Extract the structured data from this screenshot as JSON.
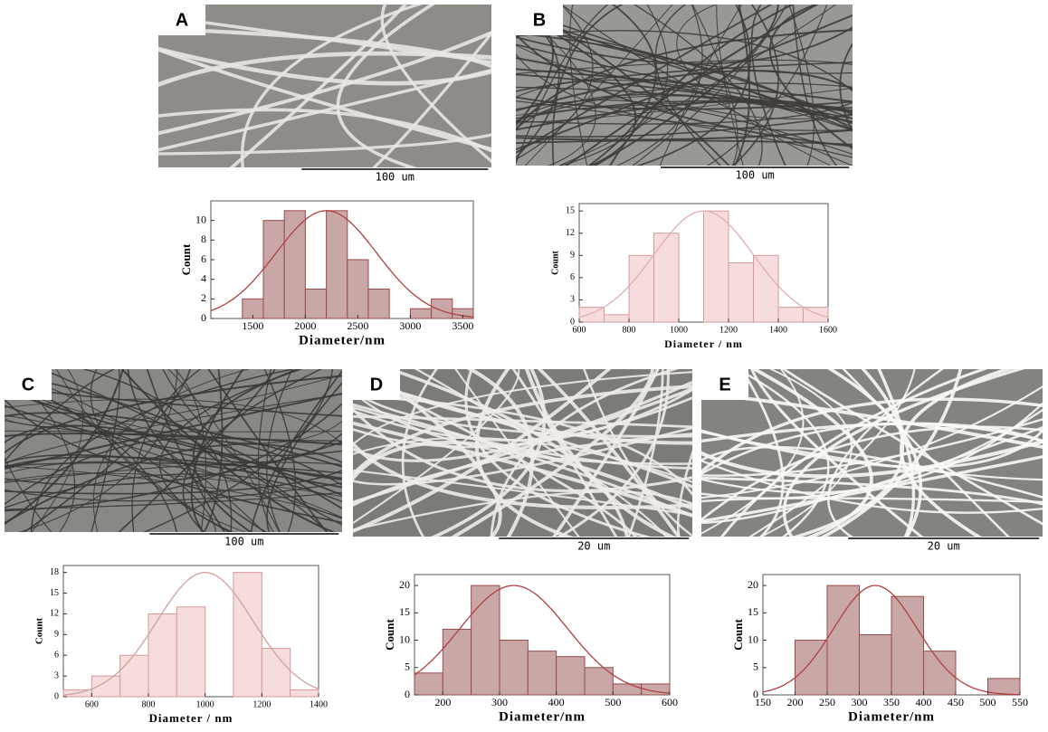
{
  "panels": [
    {
      "label": "A",
      "scale_bar": "100 um"
    },
    {
      "label": "B",
      "scale_bar": "100 um"
    },
    {
      "label": "C",
      "scale_bar": "100 um"
    },
    {
      "label": "D",
      "scale_bar": "20 um"
    },
    {
      "label": "E",
      "scale_bar": "20 um"
    }
  ],
  "chart_data": [
    {
      "type": "histogram",
      "xlabel": "Diameter/nm",
      "ylabel": "Count",
      "color": "#c9a7a7",
      "edge": "#9a4a4a",
      "curve_color": "#b04040",
      "bins": [
        1400,
        1600,
        1800,
        2000,
        2200,
        2400,
        2600,
        2800,
        3000,
        3200,
        3400,
        3600
      ],
      "values": [
        2,
        10,
        11,
        3,
        11,
        6,
        3,
        0,
        1,
        2,
        1
      ],
      "fit": {
        "mean": 2200,
        "sd": 480,
        "peak": 11
      },
      "xlim": [
        1100,
        3600
      ],
      "xticks": [
        1500,
        2000,
        2500,
        3000,
        3500
      ],
      "ylim": [
        0,
        12
      ],
      "yticks": [
        0,
        2,
        4,
        6,
        8,
        10
      ]
    },
    {
      "type": "histogram",
      "xlabel": "Diameter / nm",
      "ylabel": "Count",
      "color": "#f6dcdc",
      "edge": "#d49a9a",
      "curve_color": "#e0b0b0",
      "bins": [
        600,
        700,
        800,
        900,
        1000,
        1100,
        1200,
        1300,
        1400,
        1500,
        1600
      ],
      "values": [
        2,
        1,
        9,
        12,
        0,
        15,
        8,
        9,
        2,
        2
      ],
      "fit": {
        "mean": 1100,
        "sd": 200,
        "peak": 15
      },
      "xlim": [
        600,
        1600
      ],
      "xticks": [
        600,
        800,
        1000,
        1200,
        1400,
        1600
      ],
      "ylim": [
        0,
        16
      ],
      "yticks": [
        0,
        3,
        6,
        9,
        12,
        15
      ]
    },
    {
      "type": "histogram",
      "xlabel": "Diameter / nm",
      "ylabel": "Count",
      "color": "#f6dcdc",
      "edge": "#d49a9a",
      "curve_color": "#d0a0a0",
      "bins": [
        500,
        600,
        700,
        800,
        900,
        1000,
        1100,
        1200,
        1300,
        1400
      ],
      "values": [
        1,
        3,
        6,
        12,
        13,
        0,
        18,
        7,
        1
      ],
      "fit": {
        "mean": 1000,
        "sd": 170,
        "peak": 18
      },
      "xlim": [
        500,
        1400
      ],
      "xticks": [
        600,
        800,
        1000,
        1200,
        1400
      ],
      "ylim": [
        0,
        19
      ],
      "yticks": [
        0,
        3,
        6,
        9,
        12,
        15,
        18
      ]
    },
    {
      "type": "histogram",
      "xlabel": "Diameter/nm",
      "ylabel": "Count",
      "color": "#c9a7a7",
      "edge": "#9a4a4a",
      "curve_color": "#b04040",
      "bins": [
        150,
        200,
        250,
        300,
        350,
        400,
        450,
        500,
        550,
        600
      ],
      "values": [
        4,
        12,
        20,
        10,
        8,
        7,
        5,
        2,
        2
      ],
      "fit": {
        "mean": 325,
        "sd": 95,
        "peak": 20
      },
      "xlim": [
        150,
        600
      ],
      "xticks": [
        200,
        300,
        400,
        500,
        600
      ],
      "ylim": [
        0,
        22
      ],
      "yticks": [
        0,
        5,
        10,
        15,
        20
      ]
    },
    {
      "type": "histogram",
      "xlabel": "Diameter/nm",
      "ylabel": "Count",
      "color": "#c9a7a7",
      "edge": "#9a4a4a",
      "curve_color": "#b04040",
      "bins": [
        200,
        250,
        300,
        350,
        400,
        450,
        500,
        550
      ],
      "values": [
        10,
        20,
        11,
        18,
        8,
        0,
        3
      ],
      "fit": {
        "mean": 325,
        "sd": 65,
        "peak": 20
      },
      "xlim": [
        150,
        550
      ],
      "xticks": [
        150,
        200,
        250,
        300,
        350,
        400,
        450,
        500,
        550
      ],
      "ylim": [
        0,
        22
      ],
      "yticks": [
        0,
        5,
        10,
        15,
        20
      ]
    }
  ]
}
